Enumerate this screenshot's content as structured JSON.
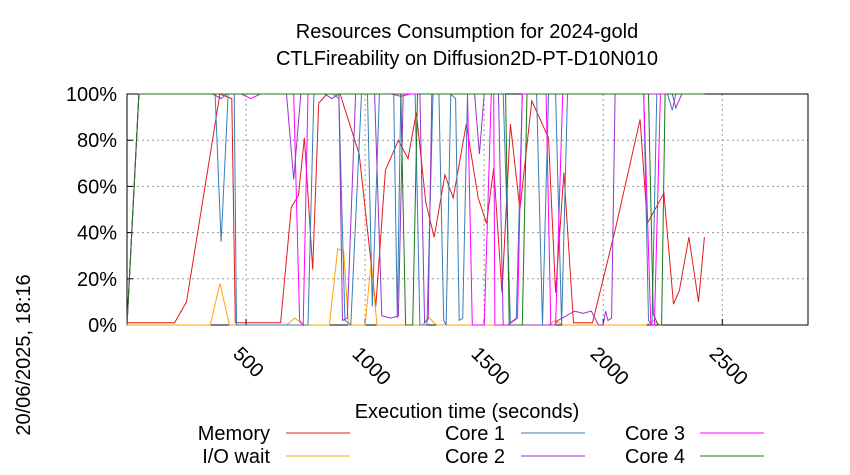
{
  "chart_data": {
    "type": "line",
    "title": "Resources Consumption for 2024-gold",
    "subtitle": "CTLFireability on Diffusion2D-PT-D10N010",
    "xlabel": "Execution time (seconds)",
    "ylabel": "",
    "side_label": "20/06/2025, 18:16",
    "xlim": [
      0,
      2860
    ],
    "ylim": [
      0,
      100
    ],
    "x_ticks": [
      500,
      1000,
      1500,
      2000,
      2500
    ],
    "y_ticks": [
      {
        "value": 0,
        "label": "0%"
      },
      {
        "value": 20,
        "label": "20%"
      },
      {
        "value": 40,
        "label": "40%"
      },
      {
        "value": 60,
        "label": "60%"
      },
      {
        "value": 80,
        "label": "80%"
      },
      {
        "value": 100,
        "label": "100%"
      }
    ],
    "grid": true,
    "legend_position": "bottom",
    "series": [
      {
        "name": "Memory",
        "color": "#e41a1c",
        "points": [
          [
            0,
            1
          ],
          [
            200,
            1
          ],
          [
            250,
            10
          ],
          [
            390,
            100
          ],
          [
            440,
            98
          ],
          [
            455,
            1
          ],
          [
            645,
            1
          ],
          [
            690,
            51
          ],
          [
            720,
            56
          ],
          [
            745,
            81
          ],
          [
            780,
            24
          ],
          [
            805,
            96
          ],
          [
            840,
            100
          ],
          [
            895,
            100
          ],
          [
            975,
            74
          ],
          [
            1045,
            8
          ],
          [
            1085,
            67
          ],
          [
            1140,
            80
          ],
          [
            1180,
            72
          ],
          [
            1215,
            92
          ],
          [
            1255,
            53
          ],
          [
            1290,
            38
          ],
          [
            1335,
            65
          ],
          [
            1370,
            55
          ],
          [
            1425,
            87
          ],
          [
            1475,
            55
          ],
          [
            1510,
            44
          ],
          [
            1540,
            68
          ],
          [
            1575,
            14
          ],
          [
            1610,
            87
          ],
          [
            1650,
            50
          ],
          [
            1700,
            97
          ],
          [
            1770,
            81
          ],
          [
            1800,
            14
          ],
          [
            1835,
            66
          ],
          [
            1875,
            1
          ],
          [
            1955,
            1
          ],
          [
            2050,
            41
          ],
          [
            2155,
            89
          ],
          [
            2185,
            44
          ],
          [
            2255,
            57
          ],
          [
            2295,
            9
          ],
          [
            2320,
            15
          ],
          [
            2360,
            38
          ],
          [
            2400,
            10
          ],
          [
            2425,
            38
          ]
        ]
      },
      {
        "name": "I/O wait",
        "color": "#ffa500",
        "points": [
          [
            0,
            0
          ],
          [
            350,
            0
          ],
          [
            390,
            18
          ],
          [
            430,
            0
          ],
          [
            670,
            0
          ],
          [
            705,
            3
          ],
          [
            740,
            0
          ],
          [
            850,
            0
          ],
          [
            885,
            33
          ],
          [
            910,
            32
          ],
          [
            930,
            0
          ],
          [
            1000,
            0
          ],
          [
            1025,
            27
          ],
          [
            1050,
            0
          ],
          [
            1150,
            0
          ],
          [
            1240,
            0
          ],
          [
            1270,
            3
          ],
          [
            1300,
            0
          ],
          [
            1770,
            0
          ],
          [
            1800,
            2
          ],
          [
            1830,
            0
          ],
          [
            2180,
            0
          ],
          [
            2210,
            2
          ],
          [
            2240,
            0
          ]
        ]
      },
      {
        "name": "Core 1",
        "color": "#377eb8",
        "points": [
          [
            0,
            0
          ],
          [
            50,
            100
          ],
          [
            370,
            100
          ],
          [
            395,
            36
          ],
          [
            425,
            100
          ],
          [
            450,
            100
          ],
          [
            460,
            0
          ],
          [
            760,
            0
          ],
          [
            785,
            100
          ],
          [
            865,
            100
          ],
          [
            890,
            98
          ],
          [
            915,
            2
          ],
          [
            940,
            0
          ],
          [
            985,
            100
          ],
          [
            1010,
            100
          ],
          [
            1030,
            8
          ],
          [
            1060,
            100
          ],
          [
            1120,
            100
          ],
          [
            1135,
            3
          ],
          [
            1150,
            100
          ],
          [
            1210,
            100
          ],
          [
            1230,
            0
          ],
          [
            1260,
            0
          ],
          [
            1285,
            100
          ],
          [
            1310,
            100
          ],
          [
            1330,
            2
          ],
          [
            1340,
            0
          ],
          [
            1360,
            100
          ],
          [
            1380,
            98
          ],
          [
            1395,
            2
          ],
          [
            1410,
            3
          ],
          [
            1430,
            100
          ],
          [
            1580,
            100
          ],
          [
            1610,
            1
          ],
          [
            1635,
            3
          ],
          [
            1660,
            100
          ],
          [
            1720,
            100
          ],
          [
            1745,
            0
          ],
          [
            1770,
            100
          ],
          [
            1800,
            100
          ],
          [
            1825,
            0
          ],
          [
            1850,
            100
          ],
          [
            2170,
            100
          ],
          [
            2190,
            2
          ],
          [
            2205,
            0
          ],
          [
            2225,
            100
          ],
          [
            2270,
            100
          ],
          [
            2290,
            93
          ],
          [
            2305,
            100
          ],
          [
            2425,
            100
          ]
        ]
      },
      {
        "name": "Core 2",
        "color": "#9933cc",
        "points": [
          [
            0,
            0
          ],
          [
            50,
            100
          ],
          [
            360,
            100
          ],
          [
            395,
            98
          ],
          [
            420,
            100
          ],
          [
            670,
            100
          ],
          [
            700,
            63
          ],
          [
            730,
            100
          ],
          [
            830,
            100
          ],
          [
            860,
            98
          ],
          [
            890,
            100
          ],
          [
            905,
            2
          ],
          [
            925,
            3
          ],
          [
            960,
            100
          ],
          [
            1040,
            100
          ],
          [
            1070,
            4
          ],
          [
            1110,
            3
          ],
          [
            1140,
            4
          ],
          [
            1160,
            100
          ],
          [
            1230,
            100
          ],
          [
            1250,
            1
          ],
          [
            1265,
            3
          ],
          [
            1280,
            100
          ],
          [
            1460,
            100
          ],
          [
            1480,
            74
          ],
          [
            1500,
            100
          ],
          [
            1560,
            100
          ],
          [
            1580,
            0
          ],
          [
            1795,
            0
          ],
          [
            1810,
            2
          ],
          [
            1880,
            6
          ],
          [
            1915,
            5
          ],
          [
            1950,
            6
          ],
          [
            1980,
            0
          ],
          [
            2000,
            0
          ],
          [
            2010,
            6
          ],
          [
            2020,
            2
          ],
          [
            2035,
            3
          ],
          [
            2050,
            100
          ],
          [
            2290,
            100
          ],
          [
            2305,
            94
          ],
          [
            2330,
            100
          ],
          [
            2425,
            100
          ]
        ]
      },
      {
        "name": "Core 3",
        "color": "#ff00ff",
        "points": [
          [
            0,
            0
          ],
          [
            50,
            100
          ],
          [
            480,
            100
          ],
          [
            520,
            98
          ],
          [
            560,
            100
          ],
          [
            700,
            100
          ],
          [
            725,
            2
          ],
          [
            740,
            0
          ],
          [
            760,
            100
          ],
          [
            1110,
            100
          ],
          [
            1150,
            99
          ],
          [
            1190,
            100
          ],
          [
            1430,
            100
          ],
          [
            1450,
            0
          ],
          [
            1500,
            0
          ],
          [
            1530,
            100
          ],
          [
            1540,
            100
          ],
          [
            1545,
            0
          ],
          [
            1600,
            0
          ],
          [
            1640,
            3
          ],
          [
            1660,
            100
          ],
          [
            1760,
            100
          ],
          [
            1780,
            0
          ],
          [
            1800,
            0
          ],
          [
            1830,
            100
          ],
          [
            2170,
            100
          ],
          [
            2200,
            0
          ],
          [
            2215,
            0
          ],
          [
            2240,
            100
          ],
          [
            2425,
            100
          ]
        ]
      },
      {
        "name": "Core 4",
        "color": "#1a7a1a",
        "points": [
          [
            0,
            0
          ],
          [
            50,
            100
          ],
          [
            1150,
            100
          ],
          [
            1170,
            0
          ],
          [
            1200,
            0
          ],
          [
            1220,
            100
          ],
          [
            1590,
            100
          ],
          [
            1605,
            0
          ],
          [
            1660,
            0
          ],
          [
            1680,
            100
          ],
          [
            2190,
            100
          ],
          [
            2210,
            5
          ],
          [
            2230,
            0
          ],
          [
            2245,
            0
          ],
          [
            2260,
            100
          ],
          [
            2425,
            100
          ]
        ]
      }
    ]
  }
}
